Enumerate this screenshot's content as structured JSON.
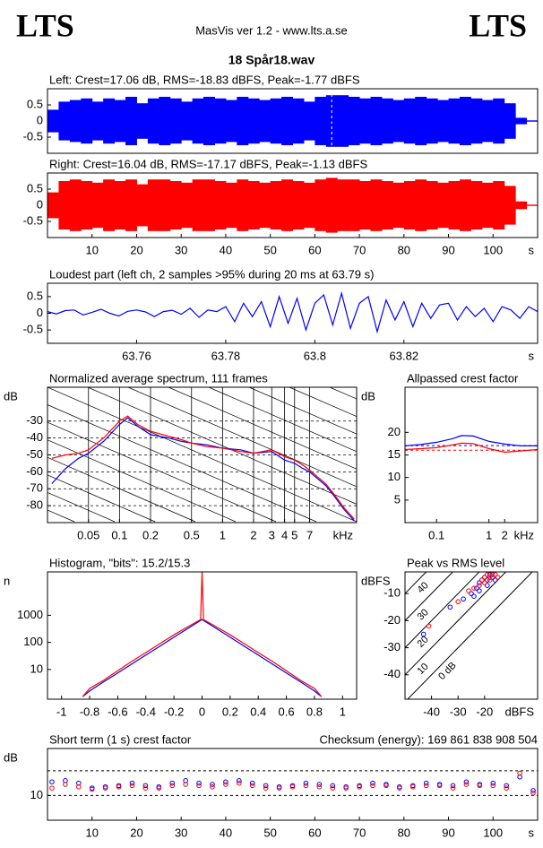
{
  "header": {
    "logo_left": "LTS",
    "logo_right": "LTS",
    "app": "MasVis ver 1.2 - www.lts.a.se",
    "file": "18 Spår18.wav"
  },
  "chart_data": [
    {
      "type": "envelope",
      "title": "Left: Crest=17.06 dB, RMS=-18.83 dBFS, Peak=-1.77 dBFS",
      "x": [
        0,
        2.5,
        5,
        7.5,
        10,
        12.5,
        15,
        17.5,
        20,
        22.5,
        25,
        27.5,
        30,
        32.5,
        35,
        37.5,
        40,
        42.5,
        45,
        47.5,
        50,
        52.5,
        55,
        57.5,
        60,
        62.5,
        65,
        67.5,
        70,
        72.5,
        75,
        77.5,
        80,
        82.5,
        85,
        87.5,
        90,
        92.5,
        95,
        97.5,
        100,
        102.5,
        105,
        107.5
      ],
      "series": [
        {
          "color": "#0000ff",
          "values": [
            0.35,
            0.6,
            0.65,
            0.7,
            0.6,
            0.7,
            0.65,
            0.75,
            0.55,
            0.7,
            0.75,
            0.7,
            0.6,
            0.7,
            0.75,
            0.7,
            0.65,
            0.75,
            0.7,
            0.65,
            0.7,
            0.75,
            0.7,
            0.6,
            0.75,
            0.8,
            0.8,
            0.75,
            0.7,
            0.75,
            0.7,
            0.65,
            0.7,
            0.75,
            0.7,
            0.65,
            0.7,
            0.75,
            0.7,
            0.65,
            0.7,
            0.55,
            0.1,
            0.02
          ]
        }
      ],
      "marker_x": 63.79,
      "xlim": [
        0,
        110
      ],
      "ylim": [
        -1,
        1
      ],
      "yticks": [
        0.5,
        0,
        -0.5
      ]
    },
    {
      "type": "envelope",
      "title": "Right: Crest=16.04 dB, RMS=-17.17 dBFS, Peak=-1.13 dBFS",
      "x": [
        0,
        2.5,
        5,
        7.5,
        10,
        12.5,
        15,
        17.5,
        20,
        22.5,
        25,
        27.5,
        30,
        32.5,
        35,
        37.5,
        40,
        42.5,
        45,
        47.5,
        50,
        52.5,
        55,
        57.5,
        60,
        62.5,
        65,
        67.5,
        70,
        72.5,
        75,
        77.5,
        80,
        82.5,
        85,
        87.5,
        90,
        92.5,
        95,
        97.5,
        100,
        102.5,
        105,
        107.5
      ],
      "series": [
        {
          "color": "#ff0000",
          "values": [
            0.4,
            0.75,
            0.8,
            0.75,
            0.7,
            0.8,
            0.75,
            0.8,
            0.65,
            0.8,
            0.8,
            0.75,
            0.7,
            0.8,
            0.8,
            0.75,
            0.7,
            0.8,
            0.75,
            0.7,
            0.75,
            0.8,
            0.75,
            0.7,
            0.8,
            0.85,
            0.8,
            0.8,
            0.75,
            0.8,
            0.75,
            0.7,
            0.75,
            0.8,
            0.75,
            0.7,
            0.75,
            0.8,
            0.75,
            0.7,
            0.75,
            0.6,
            0.12,
            0.02
          ]
        }
      ],
      "xlim": [
        0,
        110
      ],
      "ylim": [
        -1,
        1
      ],
      "yticks": [
        0.5,
        0,
        -0.5
      ],
      "xticks": [
        10,
        20,
        30,
        40,
        50,
        60,
        70,
        80,
        90,
        100
      ],
      "x_unit": "s"
    },
    {
      "type": "line",
      "title": "Loudest part (left  ch, 2 samples >95% during 20 ms at 63.79 s)",
      "x": [
        63.74,
        63.742,
        63.744,
        63.746,
        63.748,
        63.75,
        63.752,
        63.754,
        63.756,
        63.758,
        63.76,
        63.762,
        63.764,
        63.766,
        63.768,
        63.77,
        63.772,
        63.774,
        63.776,
        63.778,
        63.78,
        63.782,
        63.784,
        63.786,
        63.788,
        63.79,
        63.792,
        63.794,
        63.796,
        63.798,
        63.8,
        63.802,
        63.804,
        63.806,
        63.808,
        63.81,
        63.812,
        63.814,
        63.816,
        63.818,
        63.82,
        63.822,
        63.824,
        63.826,
        63.828,
        63.83,
        63.832,
        63.834,
        63.836,
        63.838,
        63.84,
        63.842,
        63.844,
        63.846,
        63.848,
        63.85
      ],
      "series": [
        {
          "color": "#0000ff",
          "values": [
            0.05,
            -0.02,
            0.08,
            0.1,
            -0.05,
            0.03,
            0.12,
            0.0,
            -0.08,
            0.06,
            0.1,
            0.04,
            -0.1,
            0.05,
            0.09,
            -0.03,
            0.15,
            -0.12,
            0.1,
            0.05,
            0.2,
            -0.25,
            0.3,
            -0.1,
            0.35,
            -0.4,
            0.5,
            -0.3,
            0.45,
            -0.5,
            0.3,
            0.55,
            -0.35,
            0.6,
            -0.45,
            0.3,
            0.5,
            -0.55,
            0.4,
            -0.2,
            0.35,
            -0.4,
            0.3,
            -0.15,
            0.25,
            0.3,
            -0.2,
            0.2,
            -0.1,
            0.15,
            -0.25,
            0.2,
            0.1,
            -0.15,
            0.2,
            0.05
          ]
        }
      ],
      "xlim": [
        63.74,
        63.85
      ],
      "ylim": [
        -0.9,
        0.9
      ],
      "yticks": [
        0.5,
        0,
        -0.5
      ],
      "xticks": [
        63.76,
        63.78,
        63.8,
        63.82
      ],
      "x_unit": "s"
    },
    {
      "type": "line",
      "title": "Normalized average spectrum, 111 frames",
      "log_x": true,
      "grid": true,
      "diagonals": true,
      "x": [
        0.022,
        0.03,
        0.04,
        0.05,
        0.07,
        0.1,
        0.12,
        0.15,
        0.2,
        0.3,
        0.4,
        0.5,
        0.7,
        1,
        1.5,
        2,
        3,
        4,
        5,
        6,
        7,
        8,
        10,
        12,
        15,
        19
      ],
      "series": [
        {
          "color": "#0000ff",
          "values": [
            -67,
            -58,
            -52,
            -49,
            -42,
            -32,
            -28,
            -33,
            -38,
            -40,
            -42,
            -43,
            -44,
            -46,
            -47,
            -49,
            -48,
            -53,
            -55,
            -58,
            -60,
            -63,
            -68,
            -74,
            -82,
            -89
          ]
        },
        {
          "color": "#ff0000",
          "values": [
            -52,
            -50,
            -49,
            -47,
            -40,
            -30,
            -27,
            -32,
            -36,
            -39,
            -41,
            -43,
            -45,
            -46,
            -48,
            -49,
            -47,
            -51,
            -53,
            -56,
            -59,
            -62,
            -67,
            -73,
            -81,
            -88
          ]
        }
      ],
      "xlim": [
        0.02,
        20
      ],
      "ylim": [
        -90,
        -10
      ],
      "yticks": [
        -30,
        -40,
        -50,
        -60,
        -70,
        -80
      ],
      "xticks": [
        0.05,
        0.1,
        0.2,
        0.5,
        1,
        2,
        3,
        4,
        5,
        7
      ],
      "x_unit": "kHz",
      "y_unit": "dB"
    },
    {
      "type": "line",
      "title": "Allpassed crest factor",
      "log_x": true,
      "x": [
        0.025,
        0.05,
        0.1,
        0.2,
        0.3,
        0.5,
        1,
        2,
        4,
        8.5
      ],
      "series": [
        {
          "color": "#0000ff",
          "values": [
            17,
            17.3,
            17.8,
            18.6,
            19.3,
            19.2,
            18,
            17.4,
            17,
            17
          ],
          "reference": 17.06
        },
        {
          "color": "#ff0000",
          "values": [
            16.2,
            16.4,
            16.6,
            17.2,
            17.6,
            17.5,
            16.4,
            15.6,
            15.9,
            16.2
          ],
          "reference": 16.04
        }
      ],
      "xlim": [
        0.025,
        8.5
      ],
      "ylim": [
        0,
        30
      ],
      "yticks": [
        20,
        15,
        10,
        5
      ],
      "xticks": [
        0.1,
        1,
        2
      ],
      "x_unit": "kHz",
      "y_unit": "dB"
    },
    {
      "type": "line",
      "title": "Histogram, \"bits\": 15.2/15.3",
      "log_y": true,
      "x": [
        -0.85,
        -0.8,
        -0.7,
        -0.6,
        -0.5,
        -0.4,
        -0.3,
        -0.2,
        -0.1,
        -0.01,
        0,
        0.01,
        0.1,
        0.2,
        0.3,
        0.4,
        0.5,
        0.6,
        0.7,
        0.8,
        0.85
      ],
      "series": [
        {
          "color": "#0000ff",
          "values": [
            1,
            1.6,
            3.5,
            7.4,
            16,
            34,
            72,
            155,
            330,
            650,
            700,
            650,
            330,
            155,
            72,
            34,
            16,
            7.4,
            3.5,
            1.6,
            1
          ]
        },
        {
          "color": "#ff0000",
          "values": [
            1,
            2,
            4,
            9,
            20,
            42,
            90,
            190,
            380,
            700,
            40000,
            700,
            380,
            190,
            90,
            42,
            20,
            9,
            4,
            2,
            1
          ]
        }
      ],
      "xlim": [
        -1.1,
        1.1
      ],
      "ylim": [
        0.8,
        40000
      ],
      "yticks": [
        1000,
        100,
        10
      ],
      "xticks": [
        -1,
        -0.8,
        -0.6,
        -0.4,
        -0.2,
        0,
        0.2,
        0.4,
        0.6,
        0.8,
        1
      ],
      "y_unit": "n"
    },
    {
      "type": "scatter",
      "title": "Peak vs RMS level",
      "series": [
        {
          "color": "#0000ff",
          "x": [
            -43,
            -33,
            -28,
            -25,
            -23,
            -22,
            -21,
            -20,
            -19,
            -18,
            -17,
            -16,
            -22,
            -19,
            -24
          ],
          "values": [
            -25,
            -15,
            -12,
            -10,
            -8,
            -6,
            -5,
            -4,
            -5,
            -3,
            -4,
            -5,
            -9,
            -7,
            -11
          ]
        },
        {
          "color": "#ff0000",
          "x": [
            -41,
            -30,
            -26,
            -24,
            -22,
            -21,
            -20,
            -19,
            -18,
            -17,
            -16,
            -15,
            -20,
            -18
          ],
          "values": [
            -22,
            -13,
            -9,
            -8,
            -7,
            -5,
            -4,
            -3,
            -4,
            -3,
            -3,
            -4,
            -6,
            -5
          ]
        }
      ],
      "diagonal_levels": [
        {
          "value": 40,
          "label": "40"
        },
        {
          "value": 30,
          "label": "30"
        },
        {
          "value": 20,
          "label": "20"
        },
        {
          "value": 10,
          "label": "10"
        },
        {
          "value": 0,
          "label": "0 dB"
        }
      ],
      "xlim": [
        -50,
        0
      ],
      "ylim": [
        -49,
        -2
      ],
      "yticks": [
        -10,
        -20,
        -30,
        -40
      ],
      "xticks": [
        -40,
        -30,
        -20
      ],
      "x_unit": "dBFS",
      "y_unit": "dBFS"
    },
    {
      "type": "scatter",
      "title": "Short term (1 s) crest factor",
      "annotation": "Checksum (energy):  169 861 838 908 504",
      "x": [
        1,
        4,
        7,
        10,
        13,
        16,
        19,
        22,
        25,
        28,
        31,
        34,
        37,
        40,
        43,
        46,
        49,
        52,
        55,
        58,
        61,
        64,
        67,
        70,
        73,
        76,
        79,
        82,
        85,
        88,
        91,
        94,
        97,
        100,
        103,
        106,
        109
      ],
      "series": [
        {
          "color": "#0000ff",
          "values": [
            15.5,
            16,
            15,
            13,
            13.5,
            14,
            15,
            14,
            13.5,
            15,
            16,
            15,
            14.5,
            15.5,
            16,
            15,
            14,
            13.5,
            14,
            15,
            14.5,
            14,
            13.5,
            14,
            15,
            14.5,
            13.5,
            14,
            15,
            14.5,
            14,
            15.5,
            14.5,
            15,
            14,
            17.5,
            12
          ]
        },
        {
          "color": "#ff0000",
          "values": [
            13,
            14.5,
            13.5,
            12.5,
            13,
            13.5,
            14,
            13,
            13,
            14,
            14.5,
            14,
            13.5,
            14.5,
            15,
            14,
            13,
            13,
            13.5,
            14,
            13.5,
            13,
            13,
            13.5,
            14,
            14,
            13,
            13.5,
            14,
            14,
            13,
            14.5,
            14,
            14,
            13,
            19,
            11
          ]
        }
      ],
      "dashed": [
        10,
        20
      ],
      "xlim": [
        0,
        110
      ],
      "ylim": [
        0,
        29
      ],
      "yticks": [
        10
      ],
      "xticks": [
        10,
        20,
        30,
        40,
        50,
        60,
        70,
        80,
        90,
        100
      ],
      "x_unit": "s",
      "y_unit": "dB"
    }
  ]
}
